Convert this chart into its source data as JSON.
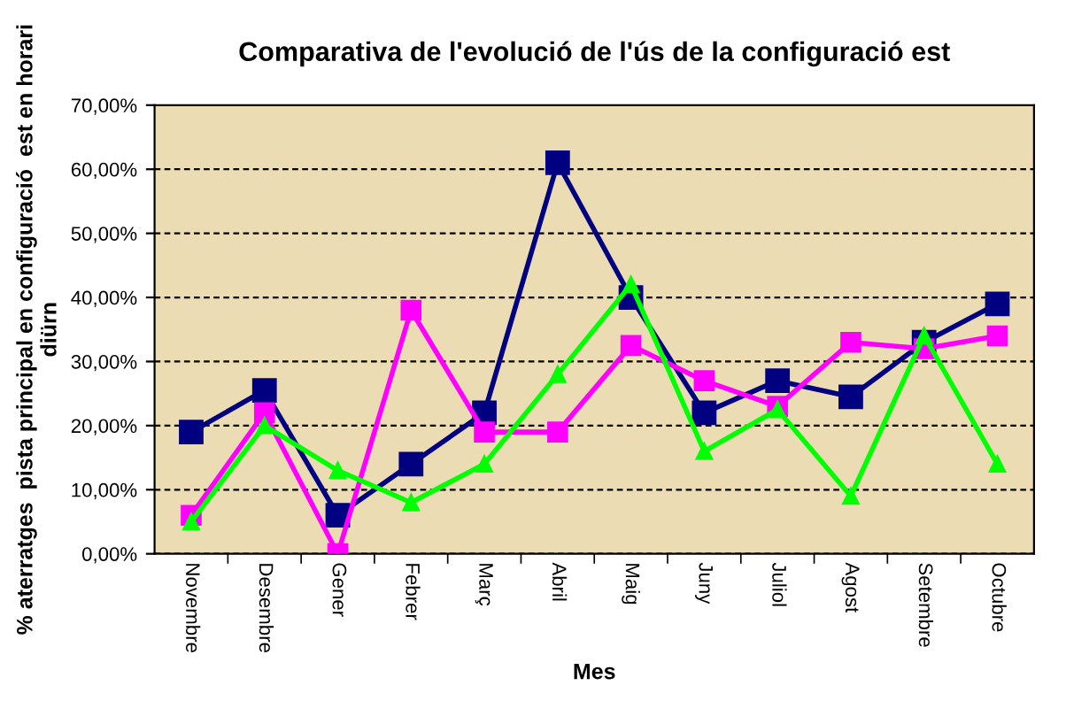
{
  "chart_data": {
    "type": "line",
    "title": "Comparativa de l'evolució de l'ús de la configuració est",
    "xlabel": "Mes",
    "ylabel": "% aterratges  pista principal en configuració  est en horari diürn",
    "categories": [
      "Novembre",
      "Desembre",
      "Gener",
      "Febrer",
      "Març",
      "Abril",
      "Maig",
      "Juny",
      "Juliol",
      "Agost",
      "Setembre",
      "Octubre"
    ],
    "series": [
      {
        "color": "#000080",
        "marker": "square",
        "values": [
          19,
          25.5,
          6,
          14,
          22,
          61,
          40,
          22,
          27,
          24.5,
          33,
          39
        ]
      },
      {
        "color": "#ff00ff",
        "marker": "square",
        "values": [
          6,
          22,
          0,
          38,
          19,
          19,
          32.5,
          27,
          23,
          33,
          32,
          34
        ]
      },
      {
        "color": "#00ff00",
        "marker": "triangle",
        "values": [
          5,
          20,
          13,
          8,
          14,
          28,
          42,
          16,
          22.5,
          9,
          34,
          14
        ]
      }
    ],
    "ylim": [
      0,
      70
    ],
    "yticks": [
      {
        "value": 0,
        "label": "0,00%"
      },
      {
        "value": 10,
        "label": "10,00%"
      },
      {
        "value": 20,
        "label": "20,00%"
      },
      {
        "value": 30,
        "label": "30,00%"
      },
      {
        "value": 40,
        "label": "40,00%"
      },
      {
        "value": 50,
        "label": "50,00%"
      },
      {
        "value": 60,
        "label": "60,00%"
      },
      {
        "value": 70,
        "label": "70,00%"
      }
    ],
    "grid": "y",
    "line_style": "solid",
    "legend": false
  }
}
